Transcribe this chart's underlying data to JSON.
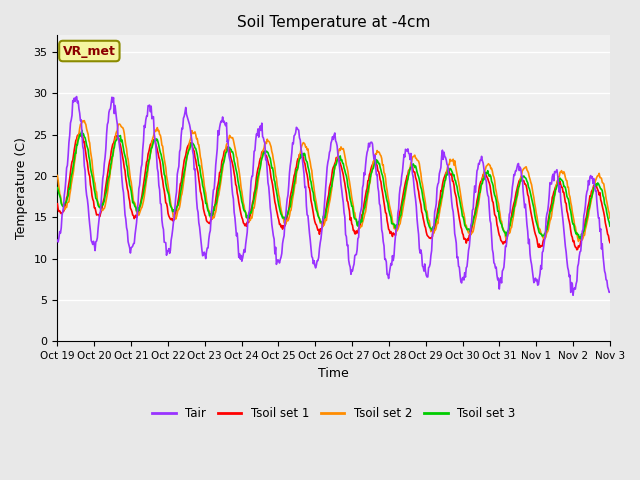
{
  "title": "Soil Temperature at -4cm",
  "xlabel": "Time",
  "ylabel": "Temperature (C)",
  "ylim": [
    0,
    37
  ],
  "yticks": [
    0,
    5,
    10,
    15,
    20,
    25,
    30,
    35
  ],
  "annotation_text": "VR_met",
  "annotation_box_color": "#f5f5a0",
  "annotation_border_color": "#8B8B00",
  "annotation_text_color": "#8B0000",
  "colors": {
    "Tair": "#9933FF",
    "Tsoil1": "#FF0000",
    "Tsoil2": "#FF8C00",
    "Tsoil3": "#00CC00"
  },
  "legend_labels": [
    "Tair",
    "Tsoil set 1",
    "Tsoil set 2",
    "Tsoil set 3"
  ],
  "background_color": "#e8e8e8",
  "plot_bg_color": "#f0f0f0",
  "grid_color": "#ffffff",
  "tick_labels": [
    "Oct 19",
    "Oct 20",
    "Oct 21",
    "Oct 22",
    "Oct 23",
    "Oct 24",
    "Oct 25",
    "Oct 26",
    "Oct 27",
    "Oct 28",
    "Oct 29",
    "Oct 30",
    "Oct 31",
    "Nov 1",
    "Nov 2",
    "Nov 3"
  ],
  "n_days": 15,
  "points_per_day": 48
}
